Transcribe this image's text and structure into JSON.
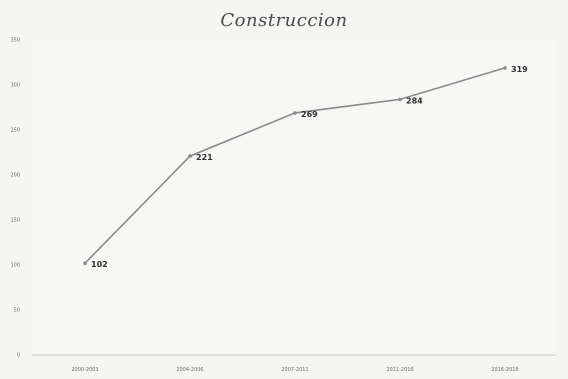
{
  "chart_data": {
    "type": "line",
    "title": "Construccion",
    "categories": [
      "2000-2003",
      "2004-2006",
      "2007-2011",
      "2011-2016",
      "2016-2019"
    ],
    "series": [
      {
        "values": [
          102,
          221,
          269,
          284,
          319
        ]
      }
    ],
    "ylim": [
      0,
      350
    ],
    "yticks": [
      0,
      50,
      100,
      150,
      200,
      250,
      300,
      350
    ],
    "grid": false,
    "line_color": "#8a8a8a",
    "label_color": "#2f2f2f"
  }
}
